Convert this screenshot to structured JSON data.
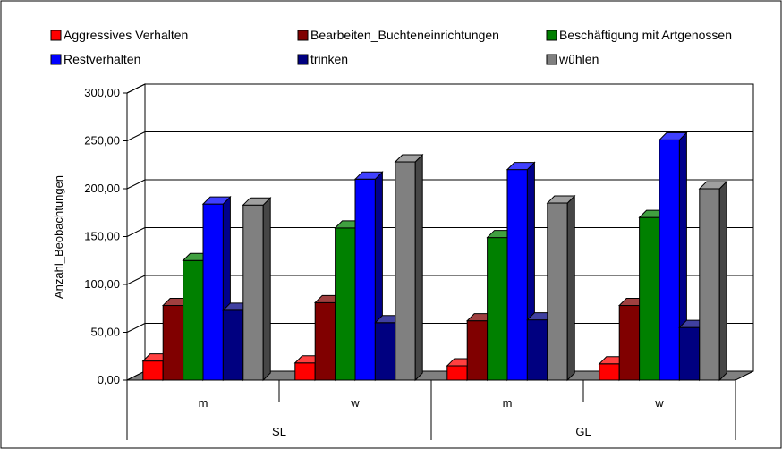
{
  "chart_data": {
    "type": "bar",
    "ylabel": "Anzahl_Beobachtungen",
    "ylim": [
      0,
      300
    ],
    "y_ticks": [
      "0,00",
      "50,00",
      "100,00",
      "150,00",
      "200,00",
      "250,00",
      "300,00"
    ],
    "grid": true,
    "legend_position": "top",
    "categories": [
      {
        "label": "m",
        "group": "SL"
      },
      {
        "label": "w",
        "group": "SL"
      },
      {
        "label": "m",
        "group": "GL"
      },
      {
        "label": "w",
        "group": "GL"
      }
    ],
    "groups": [
      "SL",
      "GL"
    ],
    "series": [
      {
        "name": "Aggressives Verhalten",
        "color": "#ff0000",
        "values": [
          20,
          18,
          15,
          17
        ]
      },
      {
        "name": "Bearbeiten_Buchteneinrichtungen",
        "color": "#800000",
        "values": [
          78,
          81,
          62,
          78
        ]
      },
      {
        "name": "Beschäftigung mit Artgenossen",
        "color": "#008000",
        "values": [
          125,
          159,
          149,
          170
        ]
      },
      {
        "name": "Restverhalten",
        "color": "#0000ff",
        "values": [
          184,
          210,
          220,
          251
        ]
      },
      {
        "name": "trinken",
        "color": "#000080",
        "values": [
          73,
          60,
          63,
          55
        ]
      },
      {
        "name": "wühlen",
        "color": "#808080",
        "values": [
          183,
          228,
          185,
          200
        ]
      }
    ]
  }
}
